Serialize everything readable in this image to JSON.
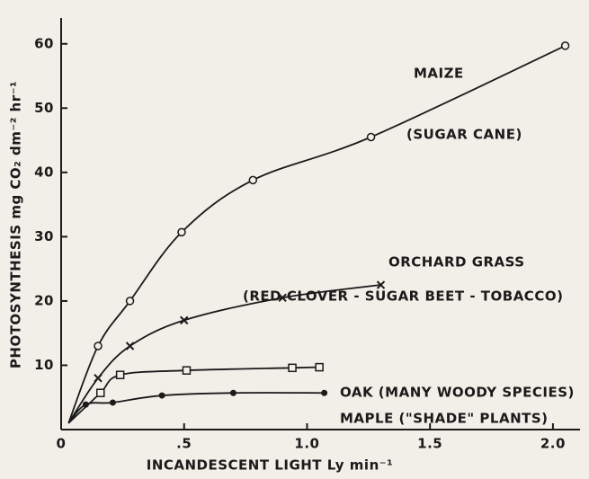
{
  "chart_data": {
    "type": "line",
    "x_label": "INCANDESCENT LIGHT Ly min⁻¹",
    "y_label": "PHOTOSYNTHESIS mg CO₂ dm⁻² hr⁻¹",
    "xlim": [
      0,
      2.11
    ],
    "ylim": [
      0,
      61
    ],
    "xticks": [
      {
        "value": 0,
        "label": "0"
      },
      {
        "value": 0.5,
        "label": ".5"
      },
      {
        "value": 1,
        "label": "1.0"
      },
      1.5,
      {
        "value": 2,
        "label": "2.0"
      }
    ],
    "yticks": [
      10,
      20,
      30,
      40,
      50,
      60
    ],
    "color": "#1a1a1a",
    "series": [
      {
        "name": "MAIZE",
        "marker": "circle",
        "x": [
          0.03,
          0.15,
          0.28,
          0.49,
          0.78,
          1.26,
          2.05
        ],
        "values": [
          1,
          13,
          20,
          30.7,
          38.8,
          45.5,
          59.7
        ]
      },
      {
        "name": "ORCHARD GRASS",
        "marker": "cross",
        "x": [
          0.03,
          0.15,
          0.28,
          0.5,
          0.9,
          1.3
        ],
        "values": [
          1,
          8,
          13,
          17,
          20.5,
          22.5
        ]
      },
      {
        "name": "OAK (MANY WOODY SPECIES)",
        "marker": "square",
        "x": [
          0.03,
          0.16,
          0.24,
          0.51,
          0.94,
          1.05
        ],
        "values": [
          1,
          5.7,
          8.5,
          9.2,
          9.6,
          9.7
        ]
      },
      {
        "name": "MAPLE (\"SHADE\" PLANTS)",
        "marker": "dot",
        "x": [
          0.03,
          0.1,
          0.21,
          0.41,
          0.7,
          1.07
        ],
        "values": [
          1,
          3.9,
          4.2,
          5.3,
          5.7,
          5.7
        ]
      }
    ],
    "annotations": [
      "(SUGAR CANE)",
      "(RED CLOVER - SUGAR BEET - TOBACCO)"
    ]
  }
}
